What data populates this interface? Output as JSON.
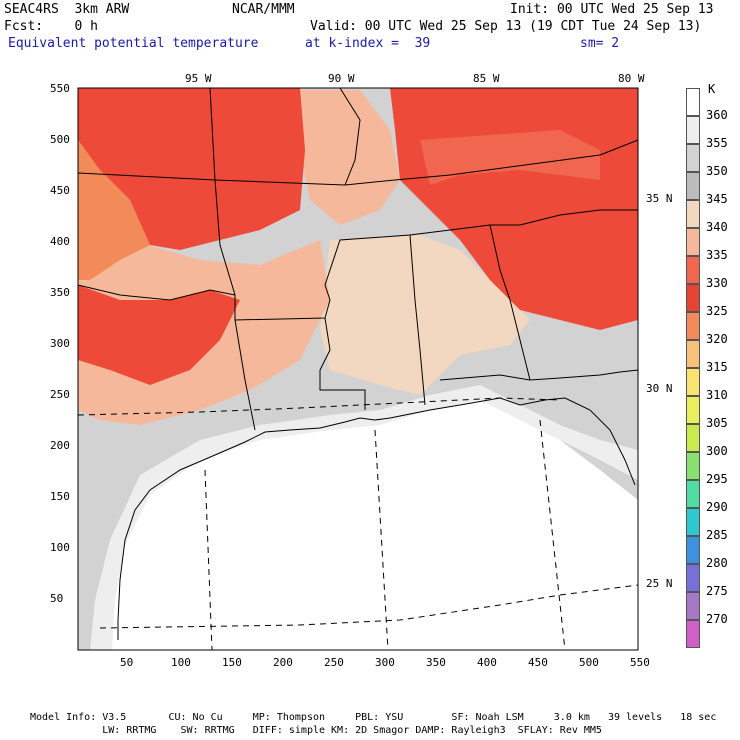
{
  "header": {
    "model": "SEAC4RS  3km ARW",
    "org": "NCAR/MMM",
    "init": "Init: 00 UTC Wed 25 Sep 13",
    "fcst": "Fcst:    0 h",
    "valid": "Valid: 00 UTC Wed 25 Sep 13 (19 CDT Tue 24 Sep 13)",
    "field": "Equivalent potential temperature",
    "level": "at k-index =  39",
    "smooth": "sm= 2"
  },
  "top_lon_labels": [
    "95 W",
    "90 W",
    "85 W",
    "80 W"
  ],
  "right_lat_labels": [
    "35 N",
    "30 N",
    "25 N"
  ],
  "x_ticks": [
    "50",
    "100",
    "150",
    "200",
    "250",
    "300",
    "350",
    "400",
    "450",
    "500",
    "550"
  ],
  "y_ticks": [
    "550",
    "500",
    "450",
    "400",
    "350",
    "300",
    "250",
    "200",
    "150",
    "100",
    "50"
  ],
  "colorbar": {
    "unit": "K",
    "levels": [
      "360",
      "355",
      "350",
      "345",
      "340",
      "335",
      "330",
      "325",
      "320",
      "315",
      "310",
      "305",
      "300",
      "295",
      "290",
      "285",
      "280",
      "275",
      "270"
    ],
    "colors": [
      "#ffffff",
      "#eeeeee",
      "#d2d2d2",
      "#bcbcbc",
      "#f2d8c0",
      "#f5b89a",
      "#f0664e",
      "#e64433",
      "#f38a5a",
      "#f8c27a",
      "#f8e46e",
      "#e8f060",
      "#c8ec50",
      "#88e070",
      "#50dca0",
      "#30c8d0",
      "#4090e0",
      "#7870d8",
      "#a878c8",
      "#d060c8"
    ]
  },
  "map_colors": {
    "white": "#ffffff",
    "lightgray": "#eeeeee",
    "gray": "#d2d2d2",
    "peach": "#f2d8c0",
    "salmon": "#f5b89a",
    "orange": "#f38a5a",
    "red": "#ed4a39",
    "redlight": "#f0664e"
  },
  "footer": {
    "line1": "Model Info: V3.5       CU: No Cu     MP: Thompson     PBL: YSU        SF: Noah LSM     3.0 km   39 levels   18 sec",
    "line2": "            LW: RRTMG    SW: RRTMG   DIFF: simple KM: 2D Smagor DAMP: Rayleigh3  SFLAY: Rev MM5"
  }
}
